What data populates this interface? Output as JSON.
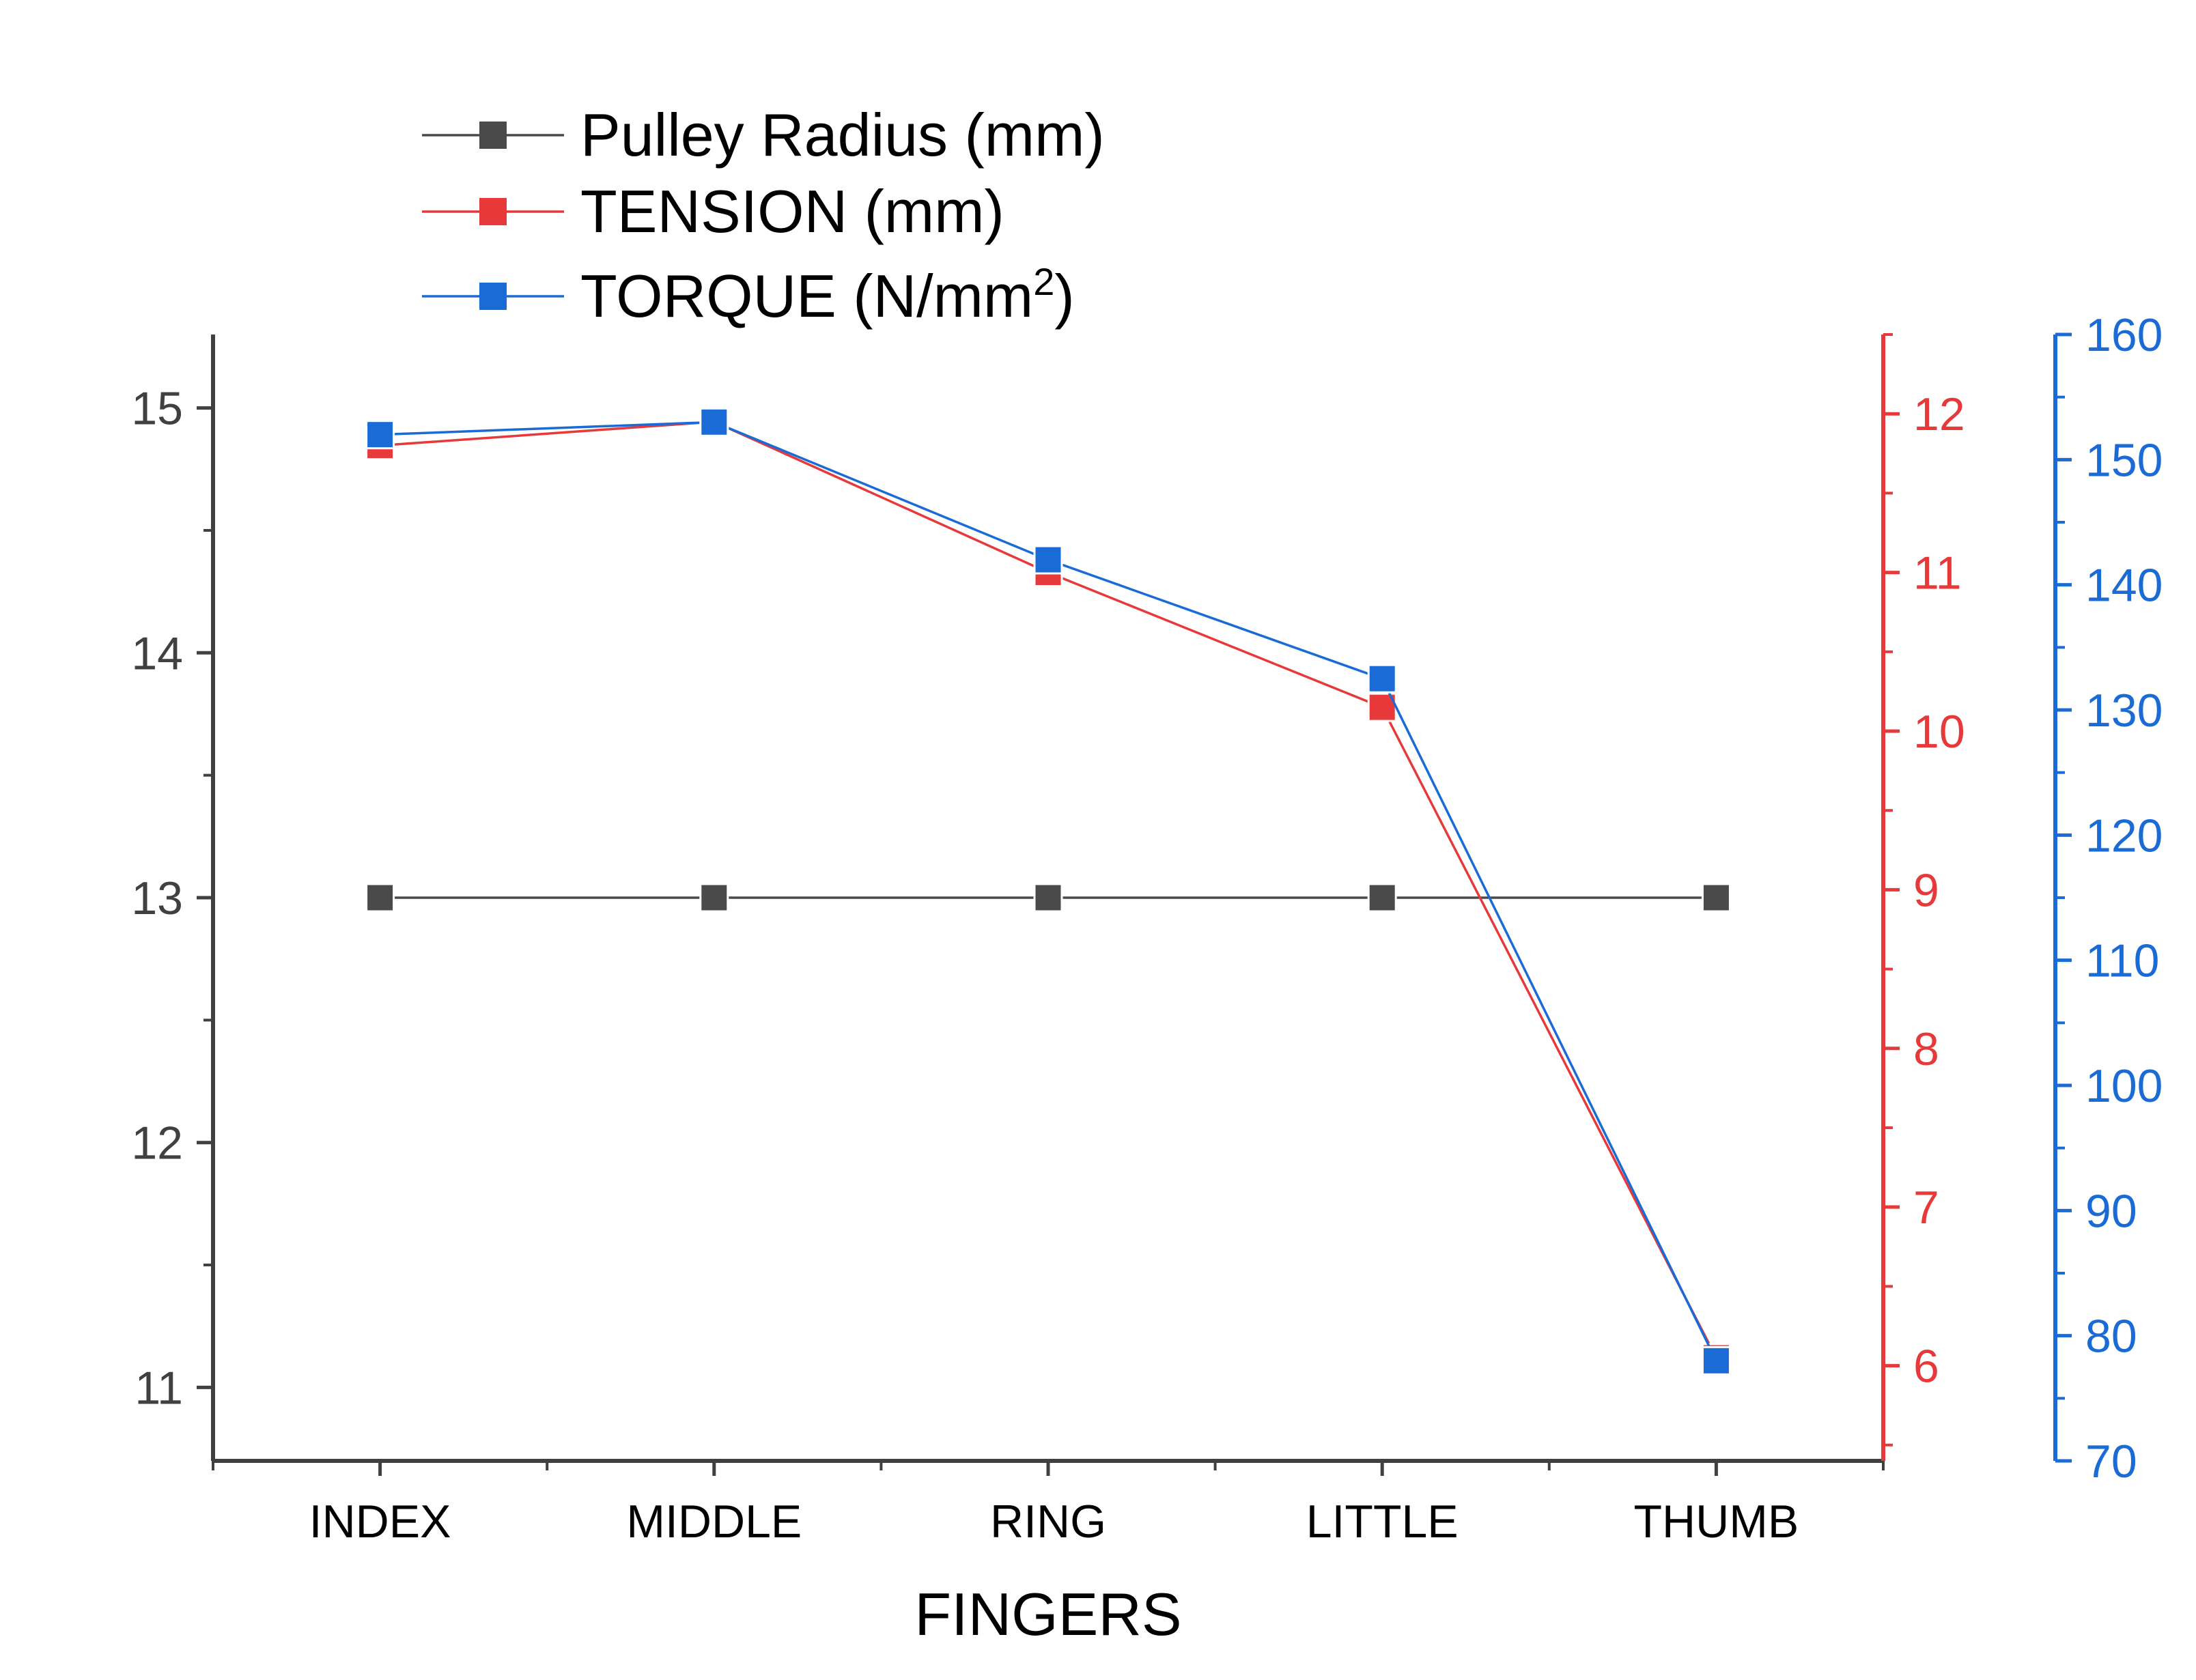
{
  "chart_data": {
    "type": "line",
    "xlabel": "FINGERS",
    "categories": [
      "INDEX",
      "MIDDLE",
      "RING",
      "LITTLE",
      "THUMB"
    ],
    "series": [
      {
        "name": "Pulley Radius (mm)",
        "axis": "left",
        "color": "#4a4a4a",
        "values": [
          13,
          13,
          13,
          13,
          13
        ]
      },
      {
        "name": "TENSION (mm)",
        "axis": "right",
        "color": "#e8393a",
        "values": [
          11.8,
          11.95,
          11.0,
          10.15,
          6.05
        ]
      },
      {
        "name": "TORQUE (N/mm",
        "name_sup": "2",
        "name_suffix": ")",
        "axis": "far-right",
        "color": "#1a6bd6",
        "values": [
          152,
          153,
          142,
          132.5,
          78
        ]
      }
    ],
    "axes": {
      "left": {
        "ylim": [
          10.7,
          15.3
        ],
        "ticks": [
          11,
          12,
          13,
          14,
          15
        ],
        "color": "#404040"
      },
      "right": {
        "ylim": [
          5.4,
          12.5
        ],
        "ticks": [
          6,
          7,
          8,
          9,
          10,
          11,
          12
        ],
        "color": "#e8393a"
      },
      "far_right": {
        "ylim": [
          70,
          160
        ],
        "ticks": [
          70,
          80,
          90,
          100,
          110,
          120,
          130,
          140,
          150,
          160
        ],
        "color": "#1a6bd6"
      }
    },
    "legend_position": "top-left",
    "grid": false
  }
}
